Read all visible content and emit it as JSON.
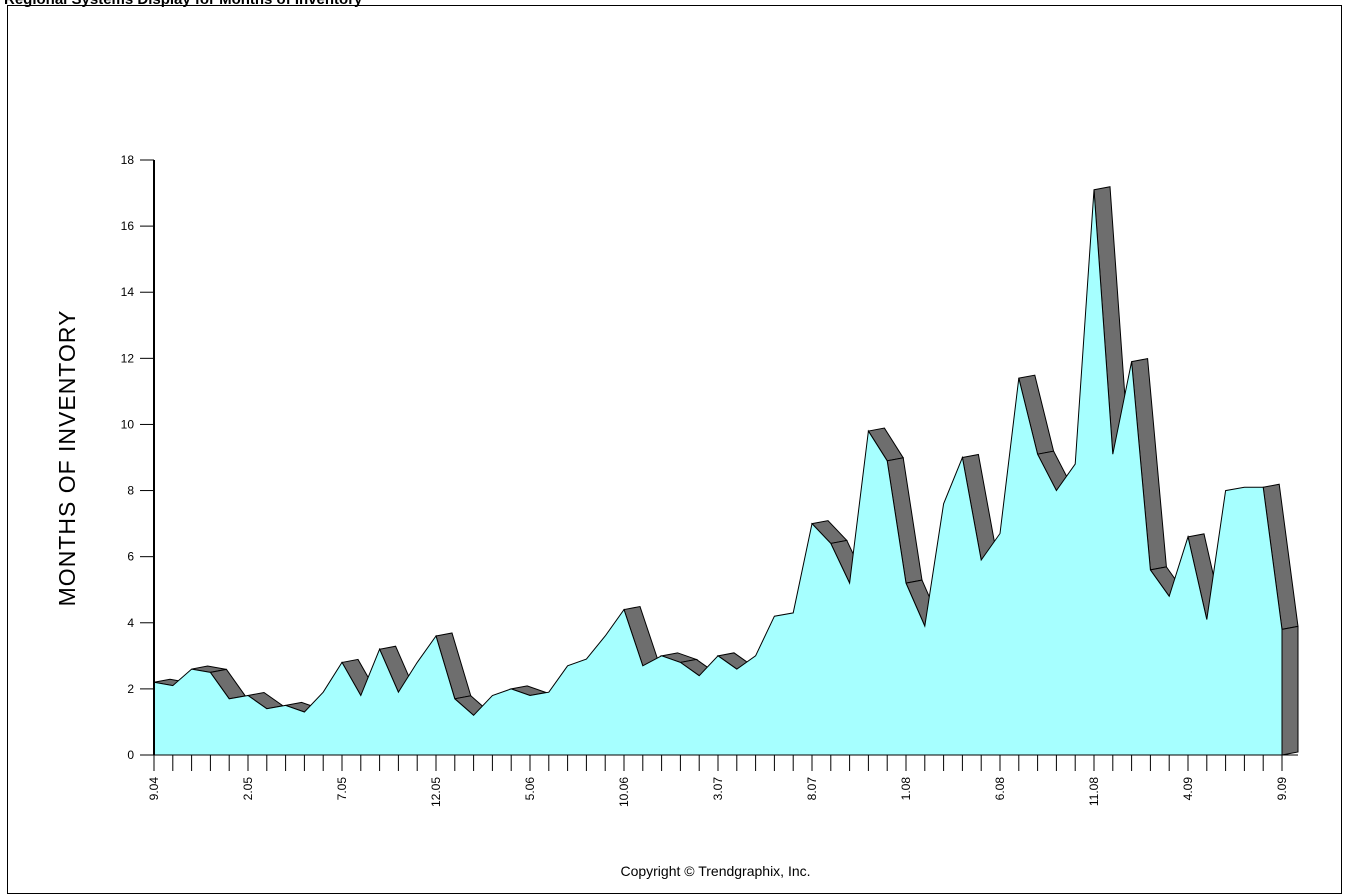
{
  "caption": "Regional Systems Display for Months of Inventory",
  "copyright": "Copyright © Trendgraphix, Inc.",
  "colors": {
    "area": "#a6ffff",
    "ribbon": "#6e6e6e",
    "outline": "#000000"
  },
  "chart_data": {
    "type": "area",
    "ylabel": "MONTHS OF INVENTORY",
    "ylim": [
      0,
      18
    ],
    "yticks": [
      0,
      2,
      4,
      6,
      8,
      10,
      12,
      14,
      16,
      18
    ],
    "xtick_labels": [
      "9.04",
      "2.05",
      "7.05",
      "12.05",
      "5.06",
      "10.06",
      "3.07",
      "8.07",
      "1.08",
      "6.08",
      "11.08",
      "4.09",
      "9.09"
    ],
    "x": [
      "9.04",
      "10.04",
      "11.04",
      "12.04",
      "1.05",
      "2.05",
      "3.05",
      "4.05",
      "5.05",
      "6.05",
      "7.05",
      "8.05",
      "9.05",
      "10.05",
      "11.05",
      "12.05",
      "1.06",
      "2.06",
      "3.06",
      "4.06",
      "5.06",
      "6.06",
      "7.06",
      "8.06",
      "9.06",
      "10.06",
      "11.06",
      "12.06",
      "1.07",
      "2.07",
      "3.07",
      "4.07",
      "5.07",
      "6.07",
      "7.07",
      "8.07",
      "9.07",
      "10.07",
      "11.07",
      "12.07",
      "1.08",
      "2.08",
      "3.08",
      "4.08",
      "5.08",
      "6.08",
      "7.08",
      "8.08",
      "9.08",
      "10.08",
      "11.08",
      "12.08",
      "1.09",
      "2.09",
      "3.09",
      "4.09",
      "5.09",
      "6.09",
      "7.09",
      "8.09",
      "9.09"
    ],
    "values": [
      2.2,
      2.1,
      2.6,
      2.5,
      1.7,
      1.8,
      1.4,
      1.5,
      1.3,
      1.9,
      2.8,
      1.8,
      3.2,
      1.9,
      2.8,
      3.6,
      1.7,
      1.2,
      1.8,
      2.0,
      1.8,
      1.9,
      2.7,
      2.9,
      3.6,
      4.4,
      2.7,
      3.0,
      2.8,
      2.4,
      3.0,
      2.6,
      3.0,
      4.2,
      4.3,
      7.0,
      6.4,
      5.2,
      9.8,
      8.9,
      5.2,
      3.9,
      7.6,
      9.0,
      5.9,
      6.7,
      11.4,
      9.1,
      8.0,
      8.8,
      17.1,
      9.1,
      11.9,
      5.6,
      4.8,
      6.6,
      4.1,
      8.0,
      8.1,
      8.1,
      3.8
    ]
  }
}
